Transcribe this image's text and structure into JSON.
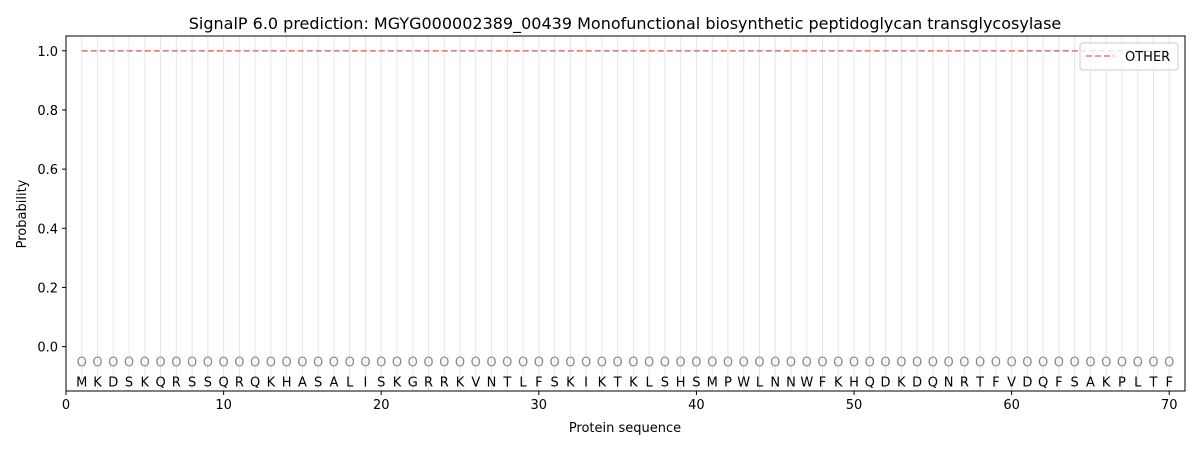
{
  "chart_data": {
    "type": "line",
    "title": "SignalP 6.0 prediction: MGYG000002389_00439 Monofunctional biosynthetic peptidoglycan transglycosylase",
    "xlabel": "Protein sequence",
    "ylabel": "Probability",
    "xlim": [
      0,
      71
    ],
    "ylim": [
      -0.15,
      1.05
    ],
    "xticks": [
      0,
      10,
      20,
      30,
      40,
      50,
      60,
      70
    ],
    "yticks": [
      0.0,
      0.2,
      0.4,
      0.6,
      0.8,
      1.0
    ],
    "ytick_labels": [
      "0.0",
      "0.2",
      "0.4",
      "0.6",
      "0.8",
      "1.0"
    ],
    "sequence": [
      "M",
      "K",
      "D",
      "S",
      "K",
      "Q",
      "R",
      "S",
      "S",
      "Q",
      "R",
      "Q",
      "K",
      "H",
      "A",
      "S",
      "A",
      "L",
      "I",
      "S",
      "K",
      "G",
      "R",
      "R",
      "K",
      "V",
      "N",
      "T",
      "L",
      "F",
      "S",
      "K",
      "I",
      "K",
      "T",
      "K",
      "L",
      "S",
      "H",
      "S",
      "M",
      "P",
      "W",
      "L",
      "N",
      "N",
      "W",
      "F",
      "K",
      "H",
      "Q",
      "D",
      "K",
      "D",
      "Q",
      "N",
      "R",
      "T",
      "F",
      "V",
      "D",
      "Q",
      "F",
      "S",
      "A",
      "K",
      "P",
      "L",
      "T",
      "F"
    ],
    "predicted_label": "O",
    "series": [
      {
        "name": "OTHER",
        "color": "#e8787a",
        "style": "dashed",
        "x_start": 1,
        "x_end": 70,
        "value": 1.0
      }
    ],
    "legend_position": "top-right",
    "grid": "vertical"
  }
}
